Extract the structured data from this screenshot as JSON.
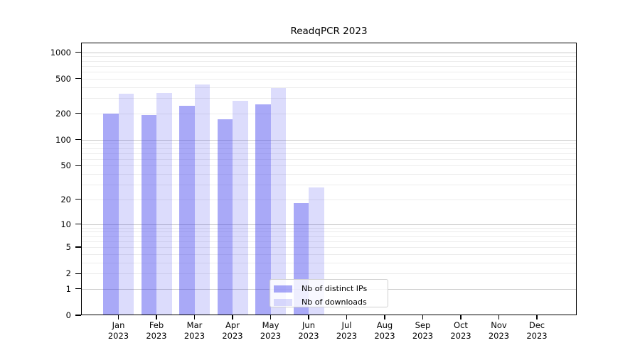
{
  "title": "ReadqPCR 2023",
  "chart_data": {
    "type": "bar",
    "title": "ReadqPCR 2023",
    "categories": [
      "Jan 2023",
      "Feb 2023",
      "Mar 2023",
      "Apr 2023",
      "May 2023",
      "Jun 2023",
      "Jul 2023",
      "Aug 2023",
      "Sep 2023",
      "Oct 2023",
      "Nov 2023",
      "Dec 2023"
    ],
    "series": [
      {
        "name": "Nb of distinct IPs",
        "color": "rgba(68,68,238,0.46)",
        "values": [
          200,
          192,
          245,
          170,
          254,
          18,
          0,
          0,
          0,
          0,
          0,
          0
        ]
      },
      {
        "name": "Nb of downloads",
        "color": "rgba(68,68,238,0.19)",
        "values": [
          335,
          340,
          430,
          280,
          390,
          28,
          0,
          0,
          0,
          0,
          0,
          0
        ]
      }
    ],
    "xlabel": "",
    "ylabel": "",
    "yscale": "log1p",
    "ylim": [
      0,
      1250
    ],
    "yticks": [
      0,
      1,
      2,
      5,
      10,
      20,
      50,
      100,
      200,
      500,
      1000
    ],
    "grid": true,
    "gridline_major_color": "#c8c8c8",
    "gridline_minor_color": "#ececec",
    "legend_position": "lower center",
    "legend_labels": [
      "Nb of distinct IPs",
      "Nb of downloads"
    ]
  }
}
